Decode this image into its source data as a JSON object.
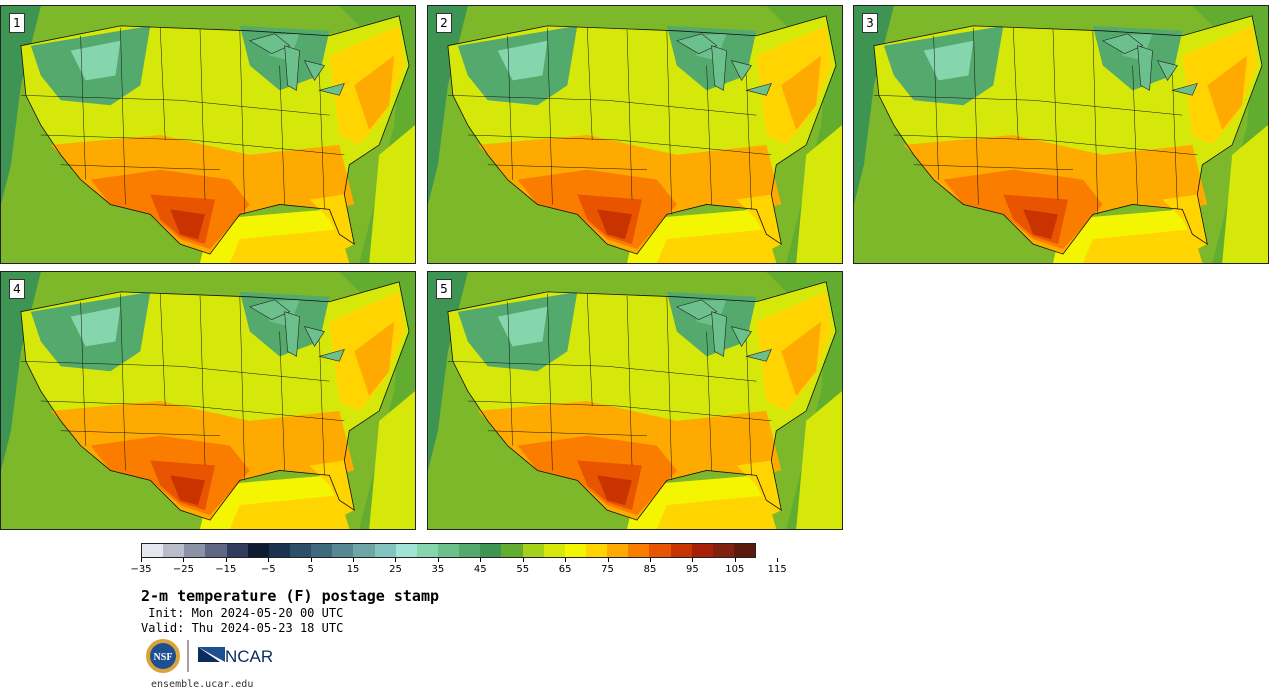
{
  "panels": [
    {
      "label": "1"
    },
    {
      "label": "2"
    },
    {
      "label": "3"
    },
    {
      "label": "4"
    },
    {
      "label": "5"
    }
  ],
  "colorbar": {
    "colors": [
      "#e6e6ef",
      "#b9bcc9",
      "#8c92a6",
      "#5f6784",
      "#303d5c",
      "#0e1b33",
      "#1c3350",
      "#2e4d68",
      "#3f6a7e",
      "#568893",
      "#6ea6a8",
      "#85c3bf",
      "#a3e3d6",
      "#86d6ad",
      "#6cc08c",
      "#54a96d",
      "#3e9453",
      "#62ad2f",
      "#a6d11a",
      "#d5e80a",
      "#f4f500",
      "#ffd400",
      "#ffaa00",
      "#fa7d00",
      "#e85400",
      "#c93300",
      "#a61f06",
      "#822010",
      "#5c1a0e"
    ],
    "tick_labels": [
      "−35",
      "−25",
      "−15",
      "−5",
      "5",
      "15",
      "25",
      "35",
      "45",
      "55",
      "65",
      "75",
      "85",
      "95",
      "105",
      "115"
    ],
    "min": -35,
    "max": 120
  },
  "title": "2-m temperature (F) postage stamp",
  "init_line": " Init: Mon 2024-05-20 00 UTC",
  "valid_line": "Valid: Thu 2024-05-23 18 UTC",
  "logos": {
    "nsf_text": "NSF",
    "ncar_text": "NCAR"
  },
  "footer": "ensemble.ucar.edu"
}
